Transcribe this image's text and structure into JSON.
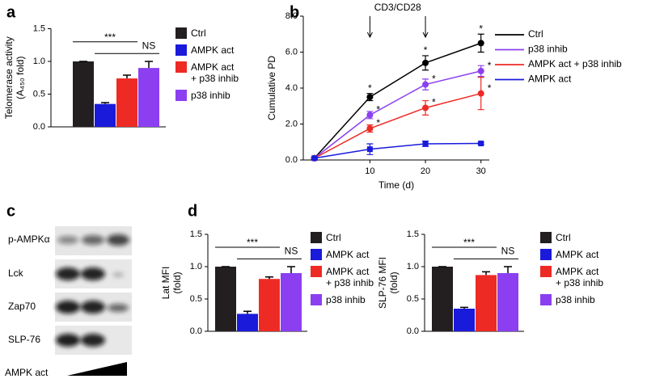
{
  "panel_labels": [
    "a",
    "b",
    "c",
    "d"
  ],
  "blot": {
    "rows": [
      "p-AMPKα",
      "Lck",
      "Zap70",
      "SLP-76"
    ],
    "treatment": "AMPK act"
  },
  "chart_data": [
    {
      "type": "bar",
      "y_label": [
        "Telomerase activity",
        "(A₄₅₀ fold)"
      ],
      "categories": [
        "Ctrl",
        "AMPK act",
        "AMPK act\n+ p38 inhib",
        "p38 inhib"
      ],
      "values": [
        1.0,
        0.35,
        0.74,
        0.9
      ],
      "errors": [
        0,
        0.02,
        0.05,
        0.1
      ],
      "colors": [
        "#231f20",
        "#1a1adb",
        "#ee2a24",
        "#8b3ff0"
      ],
      "ylim": [
        0,
        1.5
      ],
      "yticks": [
        {
          "value": 0,
          "label": "0.0"
        },
        0.5,
        {
          "value": 1,
          "label": "1.0"
        },
        1.5
      ],
      "significance": [
        "***",
        "NS"
      ]
    },
    {
      "type": "line",
      "y_label": "Cumulative PD",
      "x_label": "Time (d)",
      "annotation": "CD3/CD28",
      "annotation_x": [
        10,
        20
      ],
      "x": [
        0,
        10,
        20,
        30
      ],
      "xlim": [
        -2,
        31.5
      ],
      "xticks": [
        10,
        20,
        30
      ],
      "ylim": [
        0,
        8
      ],
      "yticks": [
        {
          "value": 0,
          "label": "0.0"
        },
        {
          "value": 2,
          "label": "2.0"
        },
        {
          "value": 4,
          "label": "4.0"
        },
        {
          "value": 6,
          "label": "6.0"
        },
        {
          "value": 8,
          "label": "8.0"
        }
      ],
      "series": [
        {
          "name": "Ctrl",
          "color": "#000000",
          "marker": "circle",
          "values": [
            0.1,
            3.5,
            5.4,
            6.5
          ],
          "errors": [
            0.05,
            0.2,
            0.4,
            0.5
          ],
          "sig": [
            null,
            "*",
            "*",
            "*"
          ]
        },
        {
          "name": "p38 inhib",
          "color": "#8b3ff0",
          "marker": "circle",
          "values": [
            0.1,
            2.5,
            4.2,
            4.95
          ],
          "errors": [
            0.05,
            0.2,
            0.3,
            0.3
          ],
          "sig": [
            null,
            "*",
            "*",
            "*"
          ]
        },
        {
          "name": "AMPK act + p38 inhib",
          "color": "#ee2a24",
          "marker": "circle",
          "values": [
            0.1,
            1.75,
            2.9,
            3.7
          ],
          "errors": [
            0.05,
            0.2,
            0.4,
            0.9
          ],
          "sig": [
            null,
            "*",
            "*",
            "*"
          ]
        },
        {
          "name": "AMPK act",
          "color": "#1a1adb",
          "marker": "square",
          "values": [
            0.1,
            0.6,
            0.9,
            0.92
          ],
          "errors": [
            0.05,
            0.3,
            0.15,
            0.05
          ],
          "sig": [
            null,
            null,
            null,
            null
          ]
        }
      ]
    },
    {
      "type": "bar",
      "y_label": [
        "Lat MFI",
        "(fold)"
      ],
      "categories": [
        "Ctrl",
        "AMPK act",
        "AMPK act\n+ p38 inhib",
        "p38 inhib"
      ],
      "values": [
        1.0,
        0.27,
        0.81,
        0.9
      ],
      "errors": [
        0,
        0.04,
        0.03,
        0.1
      ],
      "colors": [
        "#231f20",
        "#1a1adb",
        "#ee2a24",
        "#8b3ff0"
      ],
      "ylim": [
        0,
        1.5
      ],
      "yticks": [
        {
          "value": 0,
          "label": "0.0"
        },
        0.5,
        {
          "value": 1,
          "label": "1.0"
        },
        1.5
      ],
      "significance": [
        "***",
        "NS"
      ]
    },
    {
      "type": "bar",
      "y_label": [
        "SLP-76 MFI",
        "(fold)"
      ],
      "categories": [
        "Ctrl",
        "AMPK act",
        "AMPK act\n+ p38 inhib",
        "p38 inhib"
      ],
      "values": [
        1.0,
        0.35,
        0.87,
        0.9
      ],
      "errors": [
        0,
        0.02,
        0.05,
        0.1
      ],
      "colors": [
        "#231f20",
        "#1a1adb",
        "#ee2a24",
        "#8b3ff0"
      ],
      "ylim": [
        0,
        1.5
      ],
      "yticks": [
        {
          "value": 0,
          "label": "0.0"
        },
        0.5,
        {
          "value": 1,
          "label": "1.0"
        },
        1.5
      ],
      "significance": [
        "***",
        "NS"
      ]
    }
  ]
}
